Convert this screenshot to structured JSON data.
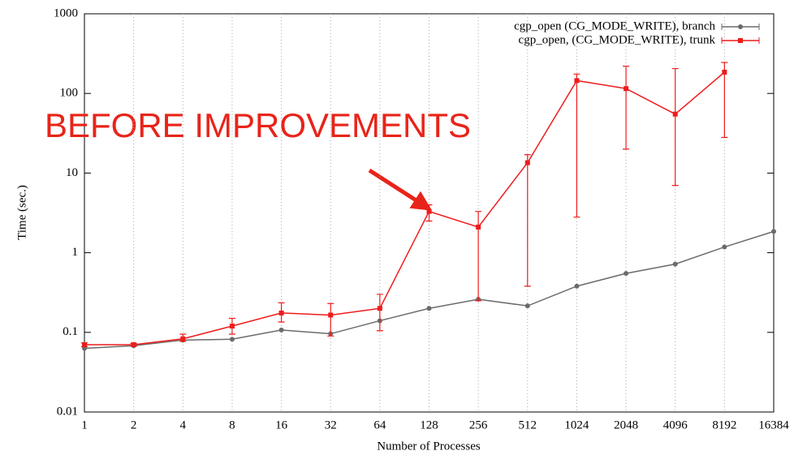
{
  "chart_data": {
    "type": "line",
    "xlabel": "Number of Processes",
    "ylabel": "Time (sec.)",
    "annotation": "BEFORE IMPROVEMENTS",
    "categories": [
      "1",
      "2",
      "4",
      "8",
      "16",
      "32",
      "64",
      "128",
      "256",
      "512",
      "1024",
      "2048",
      "4096",
      "8192",
      "16384"
    ],
    "log_y": true,
    "grid": "x",
    "legend": "top-right",
    "ylim": [
      0.01,
      1000
    ],
    "yticks": [
      0.01,
      0.1,
      1,
      10,
      100,
      1000
    ],
    "series": [
      {
        "name": "cgp_open (CG_MODE_WRITE), branch",
        "color": "#6b6b6b",
        "marker": "circle",
        "values": [
          0.063,
          0.068,
          0.08,
          0.082,
          0.107,
          0.096,
          0.14,
          0.2,
          0.26,
          0.215,
          0.38,
          0.55,
          0.72,
          1.18,
          1.85
        ]
      },
      {
        "name": "cgp_open, (CG_MODE_WRITE), trunk",
        "color": "#ee1c1c",
        "marker": "square",
        "values": [
          0.07,
          0.07,
          0.083,
          0.12,
          0.175,
          0.165,
          0.2,
          3.3,
          2.1,
          13.5,
          145,
          115,
          55,
          185,
          null
        ],
        "low": [
          0.066,
          0.067,
          0.077,
          0.095,
          0.135,
          0.09,
          0.105,
          2.5,
          0.25,
          0.38,
          2.8,
          20,
          7,
          28,
          null
        ],
        "high": [
          0.074,
          0.073,
          0.095,
          0.15,
          0.235,
          0.23,
          0.3,
          4.0,
          3.3,
          17,
          175,
          220,
          205,
          245,
          null
        ]
      }
    ]
  }
}
